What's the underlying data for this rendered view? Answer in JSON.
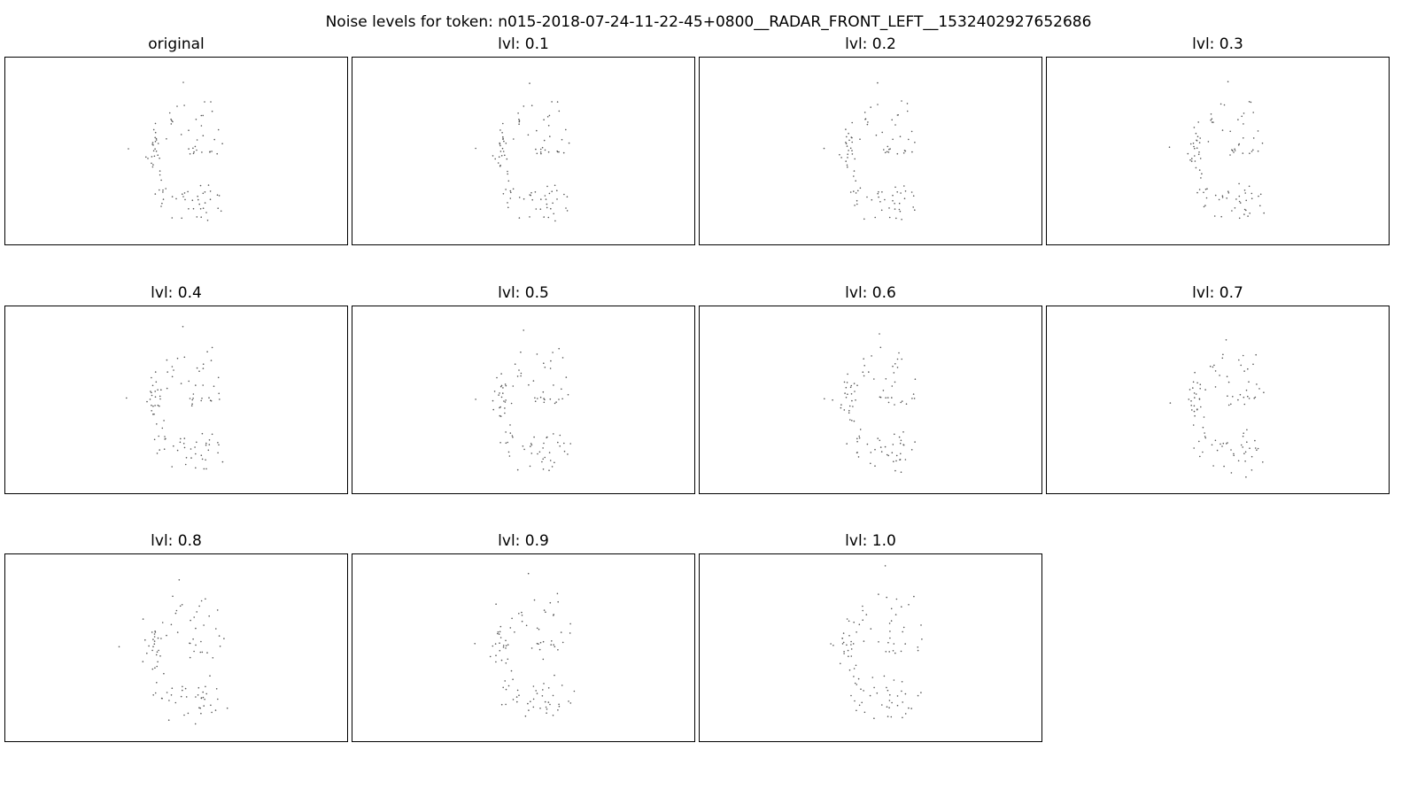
{
  "figure": {
    "title": "Noise levels for token: n015-2018-07-24-11-22-45+0800__RADAR_FRONT_LEFT__1532402927652686"
  },
  "colors": {
    "point": "#555555",
    "frame": "#000000",
    "background": "#ffffff"
  },
  "chart_data": [
    {
      "type": "scatter",
      "title": "original",
      "grid": false,
      "axes_visible": false,
      "noise_level": 0.0
    },
    {
      "type": "scatter",
      "title": "lvl: 0.1",
      "grid": false,
      "axes_visible": false,
      "noise_level": 0.1
    },
    {
      "type": "scatter",
      "title": "lvl: 0.2",
      "grid": false,
      "axes_visible": false,
      "noise_level": 0.2
    },
    {
      "type": "scatter",
      "title": "lvl: 0.3",
      "grid": false,
      "axes_visible": false,
      "noise_level": 0.3
    },
    {
      "type": "scatter",
      "title": "lvl: 0.4",
      "grid": false,
      "axes_visible": false,
      "noise_level": 0.4
    },
    {
      "type": "scatter",
      "title": "lvl: 0.5",
      "grid": false,
      "axes_visible": false,
      "noise_level": 0.5
    },
    {
      "type": "scatter",
      "title": "lvl: 0.6",
      "grid": false,
      "axes_visible": false,
      "noise_level": 0.6
    },
    {
      "type": "scatter",
      "title": "lvl: 0.7",
      "grid": false,
      "axes_visible": false,
      "noise_level": 0.7
    },
    {
      "type": "scatter",
      "title": "lvl: 0.8",
      "grid": false,
      "axes_visible": false,
      "noise_level": 0.8
    },
    {
      "type": "scatter",
      "title": "lvl: 0.9",
      "grid": false,
      "axes_visible": false,
      "noise_level": 0.9
    },
    {
      "type": "scatter",
      "title": "lvl: 1.0",
      "grid": false,
      "axes_visible": false,
      "noise_level": 1.0
    }
  ]
}
